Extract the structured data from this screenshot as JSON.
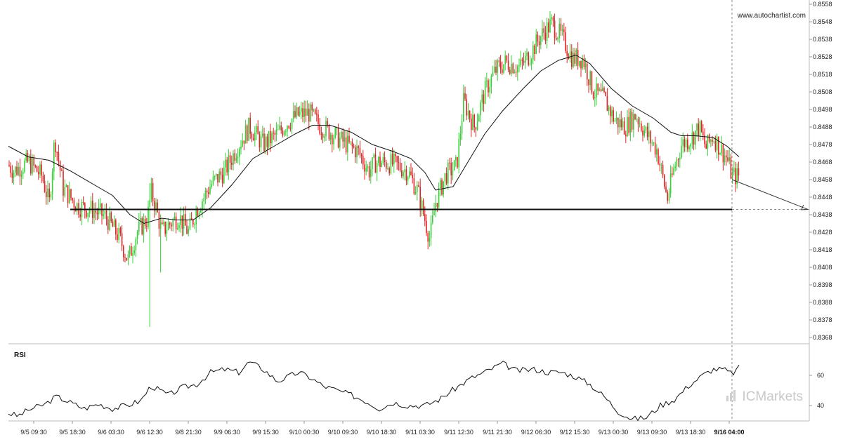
{
  "watermark": {
    "site": "www.autochartist.com",
    "brand": "ICMarkets"
  },
  "colors": {
    "up": "#3ccf3c",
    "down": "#e02424",
    "line": "#111111",
    "grid": "#d8d8d8"
  },
  "chart_data": {
    "type": "candlestick",
    "y_ticks": [
      "0.8558",
      "0.8548",
      "0.8538",
      "0.8528",
      "0.8518",
      "0.8508",
      "0.8498",
      "0.8488",
      "0.8478",
      "0.8468",
      "0.8458",
      "0.8448",
      "0.8438",
      "0.8428",
      "0.8418",
      "0.8408",
      "0.8398",
      "0.8388",
      "0.8378",
      "0.8368"
    ],
    "ylim": [
      0.8364,
      0.856
    ],
    "x_ticks": [
      "9/5 09:30",
      "9/5 18:30",
      "9/6 03:30",
      "9/6 12:30",
      "9/8 21:30",
      "9/9 06:30",
      "9/9 15:30",
      "9/10 00:30",
      "9/10 09:30",
      "9/10 18:30",
      "9/11 03:30",
      "9/11 12:30",
      "9/11 21:30",
      "9/12 06:30",
      "9/12 15:30",
      "9/13 00:30",
      "9/13 09:30",
      "9/13 18:30",
      "9/16 04:00"
    ],
    "current_tick": "9/16 04:00",
    "price_path": [
      [
        0,
        0.8471
      ],
      [
        20,
        0.8463
      ],
      [
        40,
        0.8468
      ],
      [
        60,
        0.846
      ],
      [
        70,
        0.8444
      ],
      [
        78,
        0.8482
      ],
      [
        90,
        0.8453
      ],
      [
        110,
        0.8443
      ],
      [
        130,
        0.8441
      ],
      [
        150,
        0.8437
      ],
      [
        170,
        0.8425
      ],
      [
        182,
        0.8412
      ],
      [
        195,
        0.8428
      ],
      [
        210,
        0.8436
      ],
      [
        215,
        0.8451
      ],
      [
        222,
        0.8442
      ],
      [
        230,
        0.8428
      ],
      [
        242,
        0.8433
      ],
      [
        255,
        0.8437
      ],
      [
        268,
        0.8428
      ],
      [
        280,
        0.8441
      ],
      [
        300,
        0.8455
      ],
      [
        320,
        0.8463
      ],
      [
        340,
        0.8478
      ],
      [
        355,
        0.8488
      ],
      [
        375,
        0.8478
      ],
      [
        395,
        0.8484
      ],
      [
        410,
        0.8491
      ],
      [
        425,
        0.8495
      ],
      [
        440,
        0.8496
      ],
      [
        455,
        0.8489
      ],
      [
        470,
        0.8485
      ],
      [
        490,
        0.8479
      ],
      [
        510,
        0.8474
      ],
      [
        525,
        0.8463
      ],
      [
        535,
        0.8468
      ],
      [
        560,
        0.8467
      ],
      [
        580,
        0.8463
      ],
      [
        595,
        0.8451
      ],
      [
        605,
        0.8435
      ],
      [
        612,
        0.8424
      ],
      [
        620,
        0.8445
      ],
      [
        635,
        0.8461
      ],
      [
        650,
        0.8466
      ],
      [
        660,
        0.8503
      ],
      [
        675,
        0.8488
      ],
      [
        690,
        0.8508
      ],
      [
        705,
        0.852
      ],
      [
        720,
        0.8525
      ],
      [
        740,
        0.8522
      ],
      [
        755,
        0.853
      ],
      [
        770,
        0.854
      ],
      [
        785,
        0.8547
      ],
      [
        800,
        0.8539
      ],
      [
        815,
        0.8527
      ],
      [
        830,
        0.8527
      ],
      [
        845,
        0.8508
      ],
      [
        860,
        0.8504
      ],
      [
        875,
        0.8492
      ],
      [
        890,
        0.8488
      ],
      [
        905,
        0.8495
      ],
      [
        920,
        0.8484
      ],
      [
        935,
        0.8475
      ],
      [
        950,
        0.8447
      ],
      [
        958,
        0.8462
      ],
      [
        970,
        0.8478
      ],
      [
        985,
        0.8482
      ],
      [
        995,
        0.8488
      ],
      [
        1005,
        0.8476
      ],
      [
        1015,
        0.8483
      ],
      [
        1025,
        0.8476
      ],
      [
        1035,
        0.847
      ],
      [
        1042,
        0.846
      ],
      [
        1052,
        0.846
      ]
    ],
    "moving_average": [
      [
        12,
        0.8477
      ],
      [
        40,
        0.8471
      ],
      [
        70,
        0.8469
      ],
      [
        100,
        0.8463
      ],
      [
        130,
        0.8456
      ],
      [
        160,
        0.8449
      ],
      [
        185,
        0.8438
      ],
      [
        205,
        0.8433
      ],
      [
        230,
        0.8436
      ],
      [
        250,
        0.8435
      ],
      [
        275,
        0.8435
      ],
      [
        300,
        0.8442
      ],
      [
        330,
        0.8455
      ],
      [
        360,
        0.847
      ],
      [
        390,
        0.8477
      ],
      [
        420,
        0.8484
      ],
      [
        445,
        0.8489
      ],
      [
        470,
        0.8489
      ],
      [
        500,
        0.8485
      ],
      [
        530,
        0.8478
      ],
      [
        560,
        0.8474
      ],
      [
        585,
        0.847
      ],
      [
        605,
        0.8462
      ],
      [
        620,
        0.8452
      ],
      [
        645,
        0.8454
      ],
      [
        660,
        0.8464
      ],
      [
        690,
        0.8484
      ],
      [
        715,
        0.8497
      ],
      [
        745,
        0.851
      ],
      [
        770,
        0.852
      ],
      [
        795,
        0.8526
      ],
      [
        820,
        0.8529
      ],
      [
        840,
        0.8524
      ],
      [
        870,
        0.851
      ],
      [
        900,
        0.85
      ],
      [
        930,
        0.8493
      ],
      [
        955,
        0.8485
      ],
      [
        970,
        0.8483
      ],
      [
        990,
        0.8483
      ],
      [
        1015,
        0.8482
      ],
      [
        1035,
        0.8477
      ],
      [
        1052,
        0.8471
      ]
    ],
    "support_level": 0.8441,
    "support_range": [
      100,
      1042
    ],
    "projection": {
      "from": [
        1042,
        0.8458
      ],
      "to": [
        1150,
        0.8441
      ]
    },
    "rsi": {
      "title": "RSI",
      "y_ticks": [
        "60",
        "40"
      ],
      "ylim": [
        26,
        74
      ],
      "values": [
        [
          12,
          35
        ],
        [
          25,
          33
        ],
        [
          40,
          37
        ],
        [
          65,
          41
        ],
        [
          80,
          46
        ],
        [
          100,
          42
        ],
        [
          120,
          38
        ],
        [
          140,
          41
        ],
        [
          160,
          38
        ],
        [
          180,
          40
        ],
        [
          200,
          43
        ],
        [
          215,
          53
        ],
        [
          240,
          47
        ],
        [
          260,
          52
        ],
        [
          280,
          54
        ],
        [
          300,
          62
        ],
        [
          320,
          64
        ],
        [
          340,
          62
        ],
        [
          355,
          69
        ],
        [
          375,
          64
        ],
        [
          395,
          56
        ],
        [
          410,
          59
        ],
        [
          425,
          62
        ],
        [
          440,
          59
        ],
        [
          460,
          53
        ],
        [
          480,
          50
        ],
        [
          500,
          47
        ],
        [
          520,
          43
        ],
        [
          540,
          38
        ],
        [
          560,
          42
        ],
        [
          580,
          40
        ],
        [
          605,
          40
        ],
        [
          625,
          44
        ],
        [
          650,
          52
        ],
        [
          670,
          58
        ],
        [
          690,
          62
        ],
        [
          715,
          68
        ],
        [
          735,
          63
        ],
        [
          760,
          64
        ],
        [
          780,
          62
        ],
        [
          800,
          62
        ],
        [
          820,
          59
        ],
        [
          840,
          54
        ],
        [
          860,
          46
        ],
        [
          880,
          36
        ],
        [
          900,
          31
        ],
        [
          920,
          32
        ],
        [
          940,
          40
        ],
        [
          960,
          44
        ],
        [
          980,
          53
        ],
        [
          1000,
          60
        ],
        [
          1015,
          64
        ],
        [
          1030,
          64
        ],
        [
          1042,
          61
        ],
        [
          1052,
          65
        ]
      ]
    }
  }
}
